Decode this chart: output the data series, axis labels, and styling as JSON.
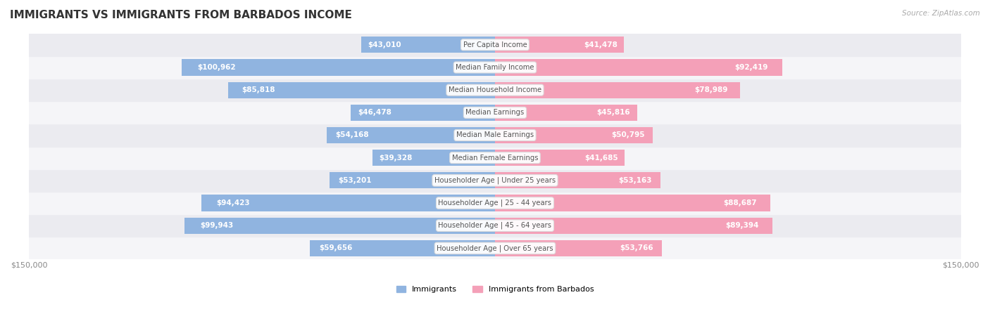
{
  "title": "IMMIGRANTS VS IMMIGRANTS FROM BARBADOS INCOME",
  "source": "Source: ZipAtlas.com",
  "categories": [
    "Per Capita Income",
    "Median Family Income",
    "Median Household Income",
    "Median Earnings",
    "Median Male Earnings",
    "Median Female Earnings",
    "Householder Age | Under 25 years",
    "Householder Age | 25 - 44 years",
    "Householder Age | 45 - 64 years",
    "Householder Age | Over 65 years"
  ],
  "immigrants": [
    43010,
    100962,
    85818,
    46478,
    54168,
    39328,
    53201,
    94423,
    99943,
    59656
  ],
  "barbados": [
    41478,
    92419,
    78989,
    45816,
    50795,
    41685,
    53163,
    88687,
    89394,
    53766
  ],
  "max_val": 150000,
  "color_immigrants": "#90b4e0",
  "color_barbados": "#f4a0b8",
  "color_immigrants_label": "#6fa0d8",
  "color_barbados_label": "#f080a0",
  "label_color_immigrants": "#5588bb",
  "label_color_barbados": "#dd6699",
  "bar_bg": "#f0f0f4",
  "row_bg_light": "#f8f8fc",
  "row_bg_dark": "#eeeeee",
  "title_color": "#333333",
  "axis_label_color": "#888888",
  "center_label_bg": "#ffffff",
  "center_label_color": "#555555"
}
